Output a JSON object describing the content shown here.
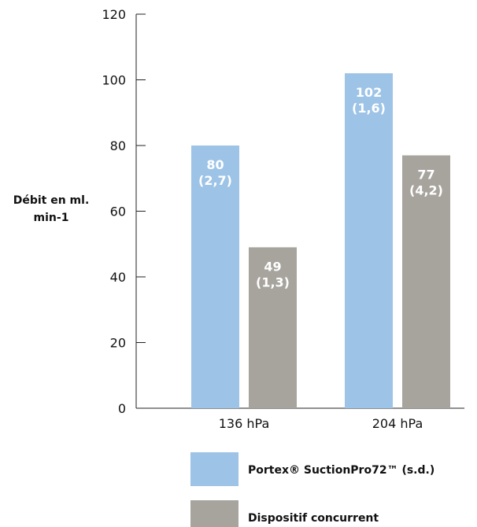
{
  "chart_data": {
    "type": "bar",
    "categories": [
      "136 hPa",
      "204 hPa"
    ],
    "series": [
      {
        "name": "Portex® SuctionPro72™ (s.d.)",
        "color": "#9dc3e6",
        "values": [
          80,
          102
        ],
        "labels": [
          [
            "80",
            "(2,7)"
          ],
          [
            "102",
            "(1,6)"
          ]
        ]
      },
      {
        "name": "Dispositif concurrent",
        "color": "#a7a49e",
        "values": [
          49,
          77
        ],
        "labels": [
          [
            "49",
            "(1,3)"
          ],
          [
            "77",
            "(4,2)"
          ]
        ]
      }
    ],
    "ylabel": "Débit en ml. min-1",
    "ylabel_lines": [
      "Débit en ml.",
      "min-1"
    ],
    "ylim": [
      0,
      120
    ],
    "yticks": [
      0,
      20,
      40,
      60,
      80,
      100,
      120
    ],
    "grid": false,
    "legend_position": "bottom"
  }
}
